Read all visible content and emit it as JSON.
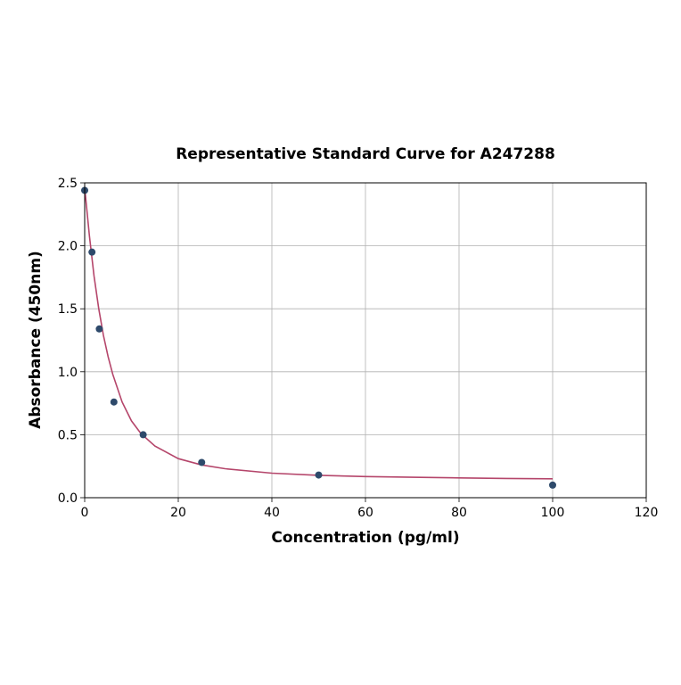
{
  "chart_data": {
    "type": "scatter",
    "title": "Representative Standard Curve for A247288",
    "xlabel": "Concentration (pg/ml)",
    "ylabel": "Absorbance (450nm)",
    "xlim": [
      0,
      120
    ],
    "ylim": [
      0,
      2.5
    ],
    "xticks": [
      0,
      20,
      40,
      60,
      80,
      100,
      120
    ],
    "xtick_labels": [
      "0",
      "20",
      "40",
      "60",
      "80",
      "100",
      "120"
    ],
    "yticks": [
      0,
      0.5,
      1.0,
      1.5,
      2.0,
      2.5
    ],
    "ytick_labels": [
      "0.0",
      "0.5",
      "1.0",
      "1.5",
      "2.0",
      "2.5"
    ],
    "grid": true,
    "legend": null,
    "series": [
      {
        "name": "Standards",
        "kind": "points",
        "color": "#2e4a6b",
        "x": [
          0,
          1.5625,
          3.125,
          6.25,
          12.5,
          25,
          50,
          100
        ],
        "y": [
          2.44,
          1.95,
          1.34,
          0.76,
          0.5,
          0.28,
          0.18,
          0.1
        ]
      },
      {
        "name": "Fitted curve",
        "kind": "line",
        "color": "#b5466b",
        "x": [
          0,
          1,
          2,
          3,
          4,
          5,
          6,
          8,
          10,
          12,
          15,
          20,
          25,
          30,
          40,
          50,
          60,
          70,
          80,
          90,
          100
        ],
        "y": [
          2.46,
          2.08,
          1.76,
          1.5,
          1.29,
          1.12,
          0.98,
          0.76,
          0.61,
          0.51,
          0.41,
          0.31,
          0.26,
          0.23,
          0.195,
          0.178,
          0.168,
          0.162,
          0.157,
          0.153,
          0.15
        ]
      }
    ]
  }
}
